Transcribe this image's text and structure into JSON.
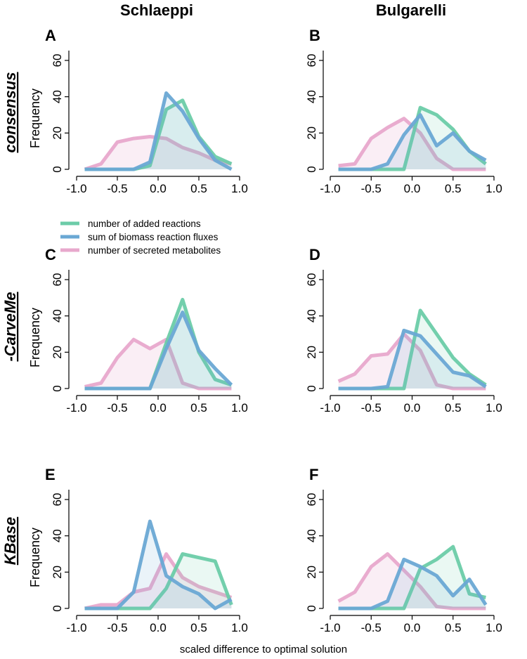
{
  "chart_data": {
    "type": "line",
    "column_titles": [
      "Schlaeppi",
      "Bulgarelli"
    ],
    "row_titles": [
      "consensus",
      "-CarveMe",
      "KBase"
    ],
    "ylabel": "Frequency",
    "xlabel": "scaled difference to optimal solution",
    "x": [
      -0.9,
      -0.7,
      -0.5,
      -0.3,
      -0.1,
      0.1,
      0.3,
      0.5,
      0.7,
      0.9
    ],
    "xlim": [
      -1.0,
      1.0
    ],
    "ylim": [
      0,
      60
    ],
    "xticks": [
      "-1.0",
      "-0.5",
      "0.0",
      "0.5",
      "1.0"
    ],
    "yticks": [
      "0",
      "20",
      "40",
      "60"
    ],
    "legend": [
      {
        "name": "number of added reactions",
        "color": "#6ccca8"
      },
      {
        "name": "sum of biomass reaction fluxes",
        "color": "#6aa8d4"
      },
      {
        "name": "number of secreted metabolites",
        "color": "#e8a8cc"
      }
    ],
    "panels": [
      {
        "label": "A",
        "column": "Schlaeppi",
        "row": "consensus",
        "series": {
          "number of added reactions": [
            0,
            0,
            0,
            0,
            2,
            33,
            38,
            18,
            7,
            3
          ],
          "sum of biomass reaction fluxes": [
            0,
            0,
            0,
            0,
            4,
            42,
            32,
            17,
            5,
            0
          ],
          "number of secreted metabolites": [
            0,
            3,
            15,
            17,
            18,
            17,
            12,
            9,
            5,
            3
          ]
        }
      },
      {
        "label": "B",
        "column": "Bulgarelli",
        "row": "consensus",
        "series": {
          "number of added reactions": [
            0,
            0,
            0,
            0,
            0,
            34,
            30,
            22,
            10,
            3
          ],
          "sum of biomass reaction fluxes": [
            0,
            0,
            0,
            3,
            19,
            30,
            13,
            20,
            10,
            5
          ],
          "number of secreted metabolites": [
            2,
            3,
            17,
            23,
            28,
            20,
            6,
            0,
            0,
            0
          ]
        }
      },
      {
        "label": "C",
        "column": "Schlaeppi",
        "row": "-CarveMe",
        "series": {
          "number of added reactions": [
            0,
            0,
            0,
            0,
            0,
            25,
            49,
            20,
            5,
            2
          ],
          "sum of biomass reaction fluxes": [
            0,
            0,
            0,
            0,
            0,
            22,
            42,
            21,
            11,
            2
          ],
          "number of secreted metabolites": [
            1,
            3,
            17,
            27,
            22,
            27,
            3,
            0,
            0,
            0
          ]
        }
      },
      {
        "label": "D",
        "column": "Bulgarelli",
        "row": "-CarveMe",
        "series": {
          "number of added reactions": [
            0,
            0,
            0,
            0,
            0,
            43,
            30,
            17,
            8,
            2
          ],
          "sum of biomass reaction fluxes": [
            0,
            0,
            0,
            1,
            32,
            29,
            19,
            9,
            7,
            1
          ],
          "number of secreted metabolites": [
            4,
            8,
            18,
            19,
            30,
            21,
            2,
            0,
            0,
            0
          ]
        }
      },
      {
        "label": "E",
        "column": "Schlaeppi",
        "row": "KBase",
        "series": {
          "number of added reactions": [
            0,
            0,
            0,
            0,
            0,
            11,
            30,
            28,
            26,
            2
          ],
          "sum of biomass reaction fluxes": [
            0,
            0,
            0,
            9,
            48,
            18,
            12,
            8,
            0,
            5
          ],
          "number of secreted metabolites": [
            0,
            2,
            2,
            9,
            11,
            30,
            17,
            12,
            9,
            6
          ]
        }
      },
      {
        "label": "F",
        "column": "Bulgarelli",
        "row": "KBase",
        "series": {
          "number of added reactions": [
            0,
            0,
            0,
            0,
            0,
            22,
            27,
            34,
            8,
            6
          ],
          "sum of biomass reaction fluxes": [
            0,
            0,
            0,
            4,
            27,
            23,
            18,
            7,
            16,
            2
          ],
          "number of secreted metabolites": [
            4,
            9,
            23,
            30,
            21,
            12,
            1,
            0,
            0,
            0
          ]
        }
      }
    ]
  }
}
